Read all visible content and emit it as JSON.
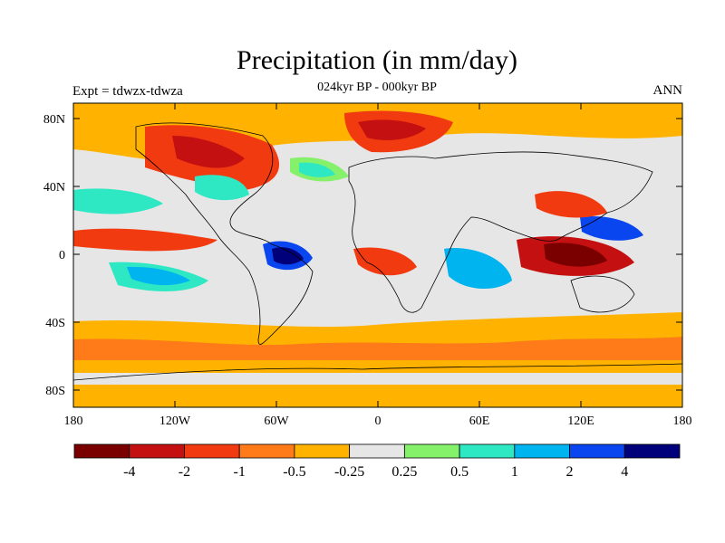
{
  "header": {
    "title": "Precipitation (in mm/day)",
    "subtitle": "024kyr BP - 000kyr BP",
    "left_label": "Expt = tdwzx-tdwza",
    "right_label": "ANN"
  },
  "axes": {
    "lat_labels": [
      "80N",
      "40N",
      "0",
      "40S",
      "80S"
    ],
    "lon_labels": [
      "180",
      "120W",
      "60W",
      "0",
      "60E",
      "120E",
      "180"
    ]
  },
  "colorbar": {
    "colors": [
      "#7a0000",
      "#c41010",
      "#f23a10",
      "#ff7a18",
      "#ffb300",
      "#e6e6e6",
      "#85f06a",
      "#2ee8c4",
      "#00b4f0",
      "#0a46f0",
      "#00007a"
    ],
    "labels": [
      "-4",
      "-2",
      "-1",
      "-0.5",
      "-0.25",
      "0.25",
      "0.5",
      "1",
      "2",
      "4"
    ]
  }
}
